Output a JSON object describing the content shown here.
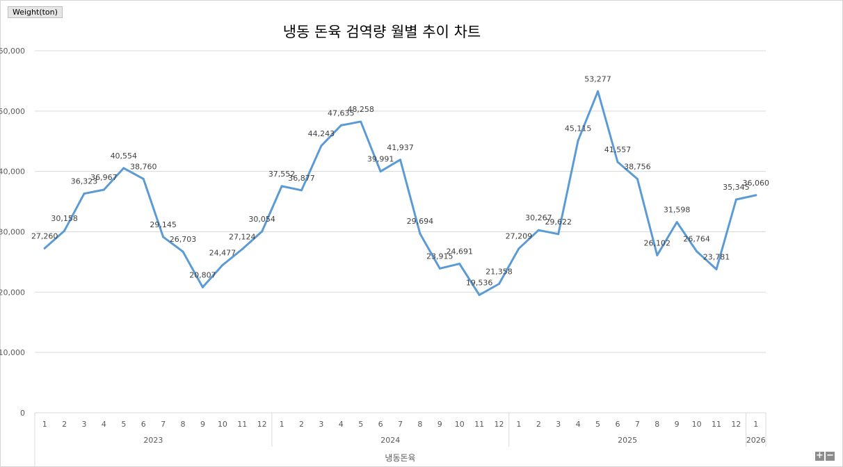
{
  "unit_tag": "Weight(ton)",
  "zoom": {
    "plus": "+",
    "minus": "−"
  },
  "colors": {
    "line": "#5b9bd5",
    "grid": "#d9d9d9",
    "axis_text": "#595959",
    "label_text": "#404040"
  },
  "chart_data": {
    "type": "line",
    "title": "냉동 돈육 검역량 월별 추이 차트",
    "ylabel": "Weight(ton)",
    "xlabel": "냉동돈육",
    "ylim": [
      0,
      60000
    ],
    "yticks": [
      "0",
      "10,000",
      "20,000",
      "30,000",
      "40,000",
      "50,000",
      "60,000"
    ],
    "grid": true,
    "x_groups": [
      {
        "label": "2023",
        "months": [
          "1",
          "2",
          "3",
          "4",
          "5",
          "6",
          "7",
          "8",
          "9",
          "10",
          "11",
          "12"
        ]
      },
      {
        "label": "2024",
        "months": [
          "1",
          "2",
          "3",
          "4",
          "5",
          "6",
          "7",
          "8",
          "9",
          "10",
          "11",
          "12"
        ]
      },
      {
        "label": "2025",
        "months": [
          "1",
          "2",
          "3",
          "4",
          "5",
          "6",
          "7",
          "8",
          "9",
          "10",
          "11",
          "12"
        ]
      },
      {
        "label": "2026",
        "months": [
          "1"
        ]
      }
    ],
    "series": [
      {
        "values": [
          27260,
          30158,
          36323,
          36967,
          40554,
          38760,
          29145,
          26703,
          20807,
          24477,
          27124,
          30054,
          37552,
          36877,
          44243,
          47635,
          48258,
          39991,
          41937,
          29694,
          23915,
          24691,
          19536,
          21358,
          27209,
          30267,
          29622,
          45115,
          53277,
          41557,
          38756,
          26102,
          31598,
          26764,
          23781,
          35345,
          36060
        ],
        "labels": [
          "27,260",
          "30,158",
          "36,323",
          "36,967",
          "40,554",
          "38,760",
          "29,145",
          "26,703",
          "20,807",
          "24,477",
          "27,124",
          "30,054",
          "37,552",
          "36,877",
          "44,243",
          "47,635",
          "48,258",
          "39,991",
          "41,937",
          "29,694",
          "23,915",
          "24,691",
          "19,536",
          "21,358",
          "27,209",
          "30,267",
          "29,622",
          "45,115",
          "53,277",
          "41,557",
          "38,756",
          "26,102",
          "31,598",
          "26,764",
          "23,781",
          "35,345",
          "36,060"
        ]
      }
    ]
  }
}
